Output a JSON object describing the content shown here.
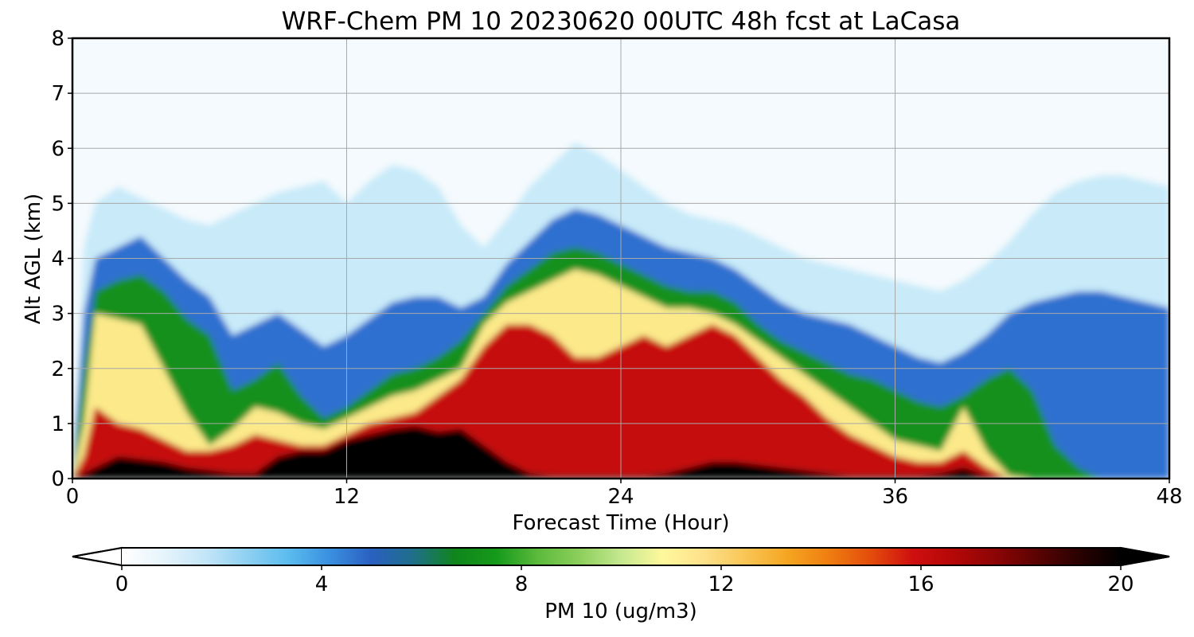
{
  "chart_data": {
    "type": "heatmap",
    "title": "WRF-Chem PM 10  20230620 00UTC 48h fcst at LaCasa",
    "xlabel": "Forecast Time (Hour)",
    "ylabel": "Alt AGL (km)",
    "xlim": [
      0,
      48
    ],
    "ylim": [
      0,
      8
    ],
    "xticks": [
      0,
      12,
      24,
      36,
      48
    ],
    "yticks": [
      0,
      1,
      2,
      3,
      4,
      5,
      6,
      7,
      8
    ],
    "grid": true,
    "colorbar": {
      "label": "PM 10  (ug/m3)",
      "range": [
        0,
        20
      ],
      "ticks": [
        0,
        4,
        8,
        12,
        16,
        20
      ],
      "extend": "both",
      "colors": [
        "#ffffff",
        "#e6f4fc",
        "#c4e6f8",
        "#8fd0f2",
        "#5bbcee",
        "#3a8fe0",
        "#2a60c0",
        "#1f6f8a",
        "#10851c",
        "#159a1a",
        "#5cba3c",
        "#8dcf5c",
        "#c5e88f",
        "#fff89c",
        "#fde08a",
        "#f9c554",
        "#f5a521",
        "#ef7d10",
        "#e34c0c",
        "#cf0f0f",
        "#b40707",
        "#8c0505",
        "#5a0303",
        "#2a0101",
        "#000000"
      ]
    },
    "x": [
      0,
      0.5,
      1,
      2,
      3,
      4,
      5,
      6,
      7,
      8,
      9,
      10,
      11,
      12,
      13,
      14,
      15,
      16,
      17,
      18,
      19,
      20,
      21,
      22,
      23,
      24,
      25,
      26,
      27,
      28,
      29,
      30,
      31,
      32,
      33,
      34,
      35,
      36,
      37,
      38,
      39,
      40,
      41,
      42,
      43,
      44,
      45,
      46,
      47,
      48
    ],
    "profiles": {
      "z_black": [
        0,
        0.1,
        0.2,
        0.4,
        0.35,
        0.3,
        0.2,
        0.15,
        0.1,
        0.1,
        0.4,
        0.5,
        0.5,
        0.7,
        0.8,
        0.9,
        0.95,
        0.85,
        0.9,
        0.6,
        0.3,
        0.1,
        0.05,
        0.05,
        0.05,
        0.05,
        0.05,
        0.1,
        0.2,
        0.3,
        0.3,
        0.25,
        0.2,
        0.15,
        0.1,
        0.05,
        0.05,
        0.05,
        0.05,
        0.1,
        0.2,
        0.05,
        0,
        0,
        0,
        0,
        0,
        0,
        0,
        0
      ],
      "z_red": [
        0,
        0.4,
        1.3,
        1.0,
        0.9,
        0.7,
        0.5,
        0.5,
        0.6,
        0.8,
        0.7,
        0.6,
        0.6,
        0.8,
        1.0,
        1.1,
        1.2,
        1.5,
        1.8,
        2.4,
        2.8,
        2.8,
        2.6,
        2.2,
        2.2,
        2.4,
        2.6,
        2.4,
        2.6,
        2.8,
        2.6,
        2.2,
        1.8,
        1.5,
        1.1,
        0.8,
        0.6,
        0.4,
        0.3,
        0.3,
        0.5,
        0.2,
        0,
        0,
        0,
        0,
        0,
        0,
        0,
        0
      ],
      "z_yellow": [
        0,
        1.0,
        3.0,
        2.9,
        2.8,
        2.0,
        1.2,
        0.6,
        0.9,
        1.3,
        1.2,
        1.0,
        0.9,
        1.1,
        1.3,
        1.5,
        1.6,
        1.8,
        2.0,
        2.8,
        3.2,
        3.4,
        3.6,
        3.8,
        3.7,
        3.5,
        3.3,
        3.1,
        3.1,
        3.0,
        2.8,
        2.5,
        2.2,
        1.9,
        1.6,
        1.3,
        1.0,
        0.7,
        0.6,
        0.5,
        1.3,
        0.5,
        0.05,
        0,
        0,
        0,
        0,
        0,
        0,
        0
      ],
      "z_green": [
        0,
        2.0,
        3.4,
        3.6,
        3.7,
        3.4,
        2.9,
        2.6,
        1.6,
        1.8,
        2.1,
        1.5,
        1.1,
        1.3,
        1.6,
        1.9,
        2.0,
        2.2,
        2.5,
        3.0,
        3.5,
        3.8,
        4.1,
        4.2,
        4.1,
        3.9,
        3.7,
        3.5,
        3.4,
        3.4,
        3.2,
        2.8,
        2.5,
        2.3,
        2.1,
        1.9,
        1.8,
        1.6,
        1.4,
        1.3,
        1.5,
        1.8,
        2.0,
        1.6,
        0.6,
        0.2,
        0,
        0,
        0,
        0
      ],
      "z_blue": [
        0,
        3.0,
        4.0,
        4.2,
        4.4,
        4.0,
        3.6,
        3.3,
        2.6,
        2.8,
        3.0,
        2.7,
        2.4,
        2.6,
        2.9,
        3.2,
        3.3,
        3.3,
        3.1,
        3.3,
        3.9,
        4.3,
        4.7,
        4.9,
        4.8,
        4.6,
        4.4,
        4.2,
        4.1,
        4.0,
        3.8,
        3.5,
        3.2,
        3.0,
        2.9,
        2.8,
        2.6,
        2.4,
        2.2,
        2.1,
        2.3,
        2.6,
        3.0,
        3.2,
        3.3,
        3.4,
        3.4,
        3.3,
        3.2,
        3.1
      ],
      "z_lightblue": [
        0,
        4.2,
        5.0,
        5.3,
        5.1,
        4.9,
        4.7,
        4.6,
        4.8,
        5.0,
        5.2,
        5.3,
        5.4,
        5.0,
        5.4,
        5.7,
        5.6,
        5.3,
        4.6,
        4.2,
        4.7,
        5.3,
        5.7,
        6.1,
        5.9,
        5.6,
        5.3,
        5.0,
        4.8,
        4.7,
        4.6,
        4.4,
        4.2,
        4.0,
        3.9,
        3.8,
        3.7,
        3.6,
        3.5,
        3.4,
        3.6,
        3.9,
        4.3,
        4.8,
        5.2,
        5.4,
        5.5,
        5.5,
        5.4,
        5.3
      ]
    }
  }
}
